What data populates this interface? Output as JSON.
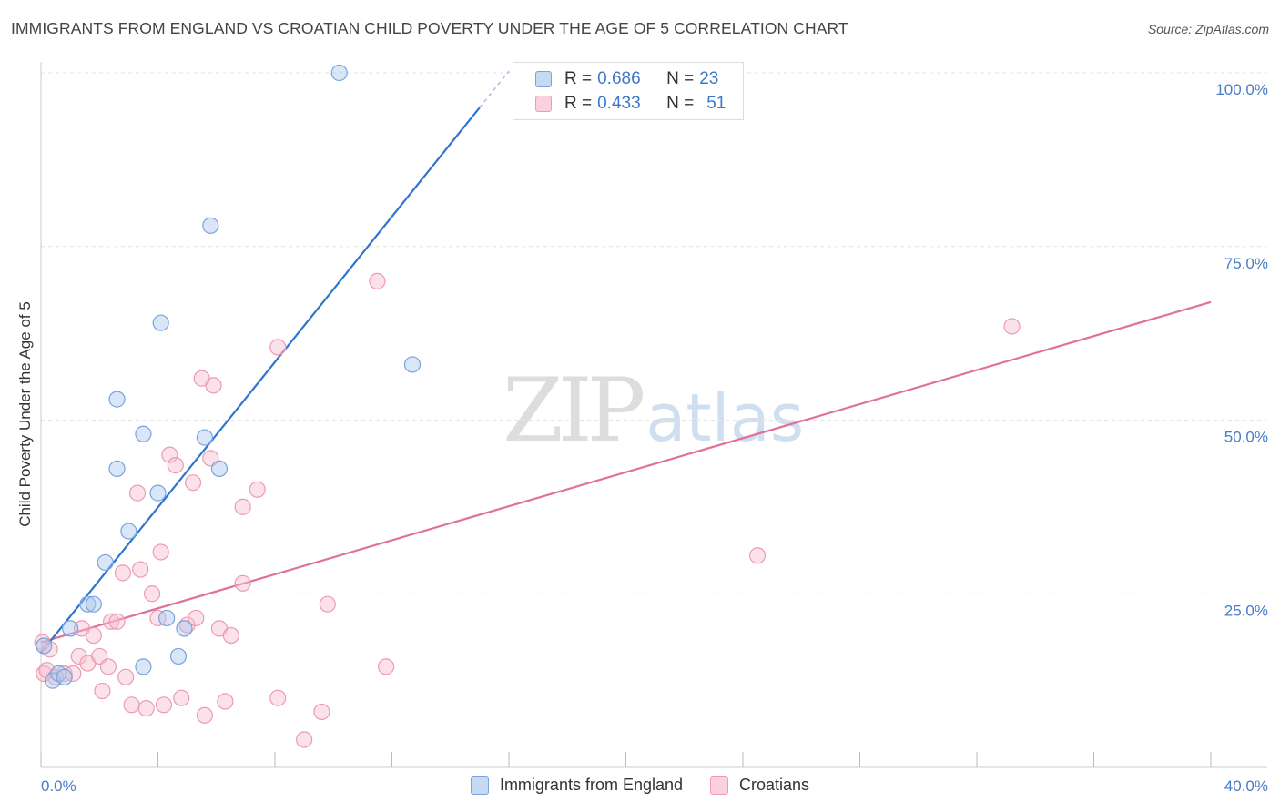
{
  "header": {
    "title": "IMMIGRANTS FROM ENGLAND VS CROATIAN CHILD POVERTY UNDER THE AGE OF 5 CORRELATION CHART",
    "source": "Source: ZipAtlas.com"
  },
  "watermark": {
    "zip": "ZIP",
    "atlas": "atlas"
  },
  "legend": {
    "england": {
      "r_label": "R =",
      "r_value": "0.686",
      "n_label": "N =",
      "n_value": "23"
    },
    "croatians": {
      "r_label": "R =",
      "r_value": "0.433",
      "n_label": "N =",
      "n_value": "51"
    }
  },
  "bottom_legend": {
    "england": "Immigrants from England",
    "croatians": "Croatians"
  },
  "colors": {
    "england_fill": "#aac8f0",
    "england_stroke": "#7aa3dc",
    "england_line": "#2f74d0",
    "croatians_fill": "#f7bccd",
    "croatians_stroke": "#ee9ab4",
    "croatians_line": "#e0729a",
    "axis_text": "#4a7cc9",
    "grid": "#e4e4e4"
  },
  "chart_data": {
    "type": "scatter",
    "title": "IMMIGRANTS FROM ENGLAND VS CROATIAN CHILD POVERTY UNDER THE AGE OF 5 CORRELATION CHART",
    "xlabel": "",
    "ylabel": "Child Poverty Under the Age of 5",
    "xlim": [
      0,
      40
    ],
    "ylim": [
      0,
      100
    ],
    "x_tick_labels": [
      "0.0%",
      "40.0%"
    ],
    "y_ticks": [
      25,
      50,
      75,
      100
    ],
    "y_tick_labels": [
      "25.0%",
      "50.0%",
      "75.0%",
      "100.0%"
    ],
    "series": [
      {
        "name": "Immigrants from England",
        "r": 0.686,
        "n": 23,
        "points": [
          [
            0.1,
            17.5
          ],
          [
            0.4,
            12.5
          ],
          [
            0.6,
            13.5
          ],
          [
            0.8,
            13.0
          ],
          [
            1.0,
            20.0
          ],
          [
            1.6,
            23.5
          ],
          [
            1.8,
            23.5
          ],
          [
            2.2,
            29.5
          ],
          [
            2.6,
            43.0
          ],
          [
            2.6,
            53.0
          ],
          [
            3.0,
            34.0
          ],
          [
            3.5,
            48.0
          ],
          [
            3.5,
            14.5
          ],
          [
            4.0,
            39.5
          ],
          [
            4.1,
            64.0
          ],
          [
            4.3,
            21.5
          ],
          [
            4.7,
            16.0
          ],
          [
            4.9,
            20.0
          ],
          [
            5.6,
            47.5
          ],
          [
            5.8,
            78.0
          ],
          [
            6.1,
            43.0
          ],
          [
            10.2,
            100.0
          ],
          [
            12.7,
            58.0
          ]
        ],
        "trend": {
          "x": [
            0.0,
            15.0
          ],
          "y": [
            16.5,
            95.0
          ]
        }
      },
      {
        "name": "Croatians",
        "r": 0.433,
        "n": 51,
        "points": [
          [
            0.05,
            18.0
          ],
          [
            0.1,
            13.5
          ],
          [
            0.2,
            14.0
          ],
          [
            0.5,
            13.0
          ],
          [
            0.8,
            13.5
          ],
          [
            1.1,
            13.5
          ],
          [
            1.3,
            16.0
          ],
          [
            1.4,
            20.0
          ],
          [
            1.6,
            15.0
          ],
          [
            1.8,
            19.0
          ],
          [
            2.0,
            16.0
          ],
          [
            2.1,
            11.0
          ],
          [
            2.3,
            14.5
          ],
          [
            2.4,
            21.0
          ],
          [
            2.6,
            21.0
          ],
          [
            2.8,
            28.0
          ],
          [
            2.9,
            13.0
          ],
          [
            3.1,
            9.0
          ],
          [
            3.3,
            39.5
          ],
          [
            3.4,
            28.5
          ],
          [
            3.6,
            8.5
          ],
          [
            3.8,
            25.0
          ],
          [
            4.0,
            21.5
          ],
          [
            4.1,
            31.0
          ],
          [
            4.2,
            9.0
          ],
          [
            4.4,
            45.0
          ],
          [
            4.6,
            43.5
          ],
          [
            4.8,
            10.0
          ],
          [
            5.0,
            20.5
          ],
          [
            5.2,
            41.0
          ],
          [
            5.3,
            21.5
          ],
          [
            5.5,
            56.0
          ],
          [
            5.6,
            7.5
          ],
          [
            5.8,
            44.5
          ],
          [
            5.9,
            55.0
          ],
          [
            6.1,
            20.0
          ],
          [
            6.3,
            9.5
          ],
          [
            6.5,
            19.0
          ],
          [
            6.9,
            26.5
          ],
          [
            6.9,
            37.5
          ],
          [
            7.4,
            40.0
          ],
          [
            8.1,
            10.0
          ],
          [
            8.1,
            60.5
          ],
          [
            9.0,
            4.0
          ],
          [
            9.6,
            8.0
          ],
          [
            9.8,
            23.5
          ],
          [
            11.5,
            70.0
          ],
          [
            11.8,
            14.5
          ],
          [
            24.5,
            30.5
          ],
          [
            33.2,
            63.5
          ],
          [
            0.3,
            17.0
          ]
        ],
        "trend": {
          "x": [
            0.0,
            40.0
          ],
          "y": [
            18.0,
            67.0
          ]
        }
      }
    ]
  }
}
